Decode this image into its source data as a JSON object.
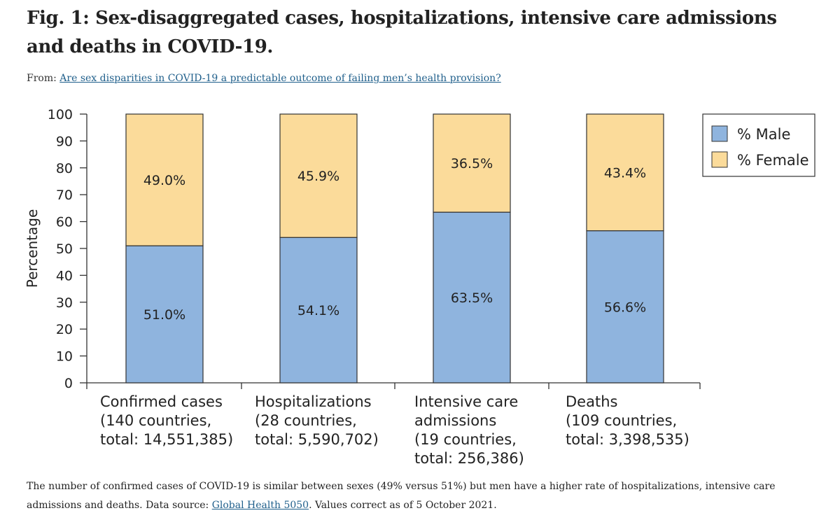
{
  "figure": {
    "title": "Fig. 1: Sex-disaggregated cases, hospitalizations, intensive care admissions and deaths in COVID-19.",
    "from_label": "From: ",
    "from_link": "Are sex disparities in COVID-19 a predictable outcome of failing men’s health provision?",
    "caption_part1": "The number of confirmed cases of COVID-19 is similar between sexes (49% versus 51%) but men have a higher rate of hospitalizations, intensive care admissions and deaths. Data source: ",
    "caption_link": "Global Health 5050",
    "caption_part2": ". Values correct as of 5 October 2021."
  },
  "colors": {
    "male": "#8fb4de",
    "female": "#fbdb9a",
    "stroke": "#333333"
  },
  "chart_data": {
    "type": "bar",
    "stacked": true,
    "title": "",
    "xlabel": "",
    "ylabel": "Percentage",
    "ylim": [
      0,
      100
    ],
    "yticks": [
      0,
      10,
      20,
      30,
      40,
      50,
      60,
      70,
      80,
      90,
      100
    ],
    "categories": [
      [
        "Confirmed cases",
        "(140 countries,",
        "total: 14,551,385)"
      ],
      [
        "Hospitalizations",
        "(28 countries,",
        "total: 5,590,702)"
      ],
      [
        "Intensive care",
        "admissions",
        "(19 countries,",
        "total: 256,386)"
      ],
      [
        "Deaths",
        "(109 countries,",
        "total: 3,398,535)"
      ]
    ],
    "series": [
      {
        "name": "% Male",
        "values": [
          51.0,
          54.1,
          63.5,
          56.6
        ],
        "labels": [
          "51.0%",
          "54.1%",
          "63.5%",
          "56.6%"
        ]
      },
      {
        "name": "% Female",
        "values": [
          49.0,
          45.9,
          36.5,
          43.4
        ],
        "labels": [
          "49.0%",
          "45.9%",
          "36.5%",
          "43.4%"
        ]
      }
    ],
    "legend": "top-right"
  }
}
